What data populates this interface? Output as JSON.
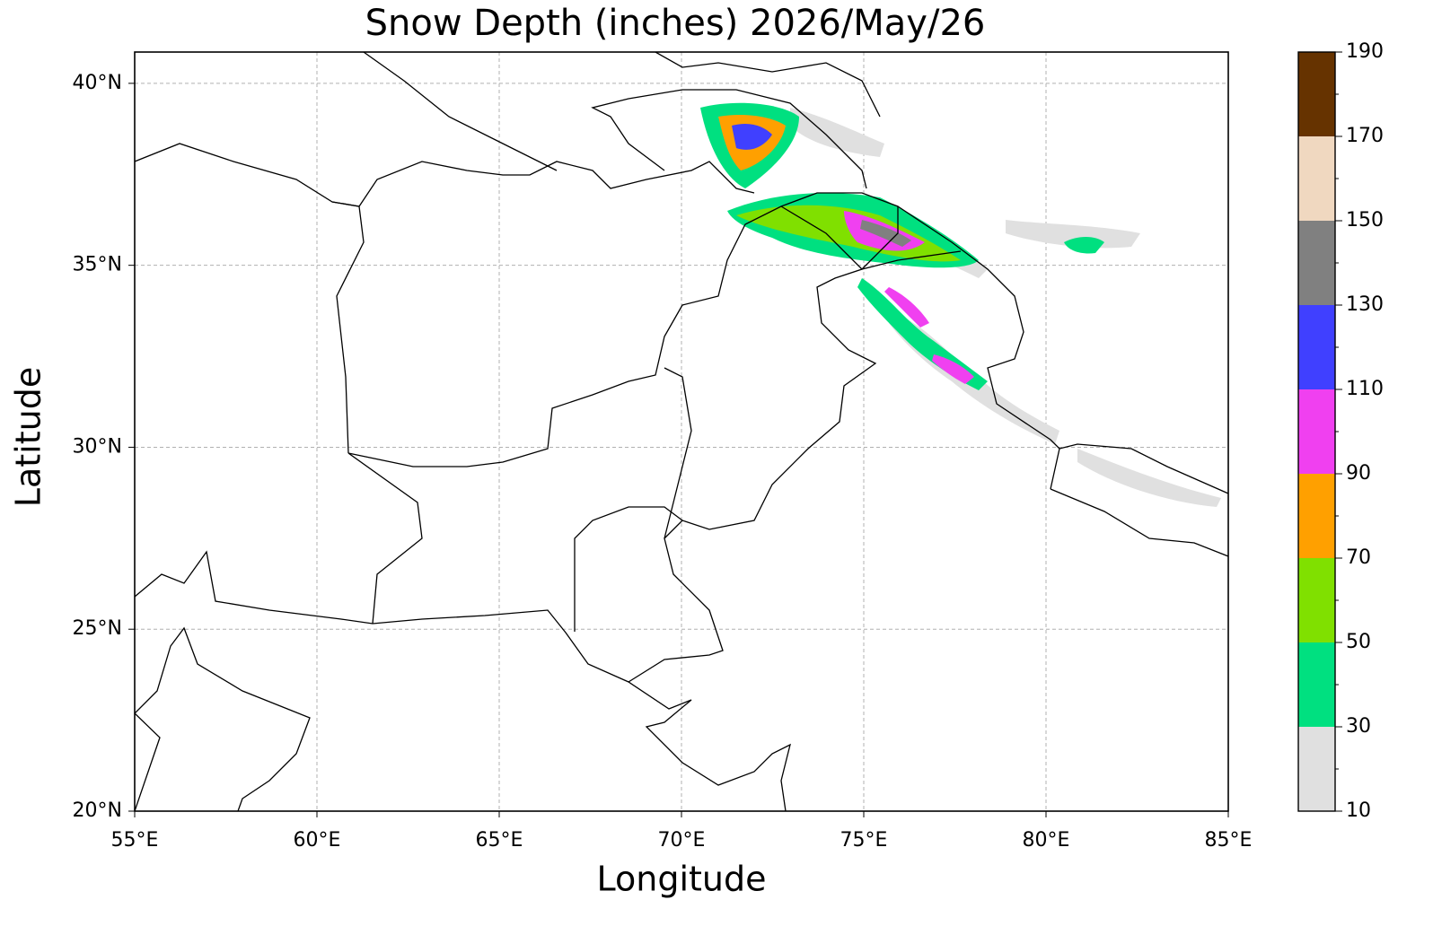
{
  "chart_data": {
    "type": "contour-map",
    "title": "Snow Depth (inches) 2026/May/26",
    "xlabel": "Longitude",
    "ylabel": "Latitude",
    "xlim": [
      55,
      85
    ],
    "ylim": [
      20,
      40.86
    ],
    "xticks": [
      {
        "value": 55,
        "label": "55°E"
      },
      {
        "value": 60,
        "label": "60°E"
      },
      {
        "value": 65,
        "label": "65°E"
      },
      {
        "value": 70,
        "label": "70°E"
      },
      {
        "value": 75,
        "label": "75°E"
      },
      {
        "value": 80,
        "label": "80°E"
      },
      {
        "value": 85,
        "label": "85°E"
      }
    ],
    "yticks": [
      {
        "value": 20,
        "label": "20°N"
      },
      {
        "value": 25,
        "label": "25°N"
      },
      {
        "value": 30,
        "label": "30°N"
      },
      {
        "value": 35,
        "label": "35°N"
      },
      {
        "value": 40,
        "label": "40°N"
      }
    ],
    "grid": true,
    "colorbar": {
      "levels": [
        10,
        30,
        50,
        70,
        90,
        110,
        130,
        150,
        170,
        190
      ],
      "colors": [
        "#e0e0e0",
        "#00e080",
        "#80e000",
        "#ffa000",
        "#f040f0",
        "#4040ff",
        "#808080",
        "#f0d8c0",
        "#663300"
      ],
      "ticks": [
        10,
        30,
        50,
        70,
        90,
        110,
        130,
        150,
        170,
        190
      ]
    }
  }
}
